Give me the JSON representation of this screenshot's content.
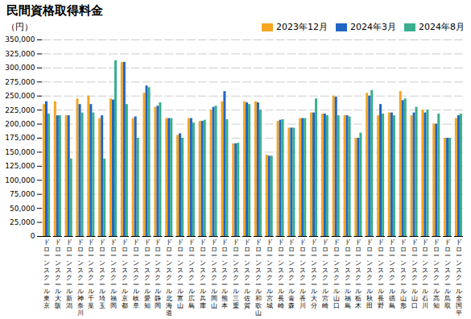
{
  "chart_data": {
    "type": "bar",
    "title": "民間資格取得料金",
    "ylabel": "（円）",
    "categories": [
      "ドローンスクール東京",
      "ドローンスクール大阪",
      "ドローンスクール新潟",
      "ドローンスクール神奈川",
      "ドローンスクール千葉",
      "ドローンスクール埼玉",
      "ドローンスクール福岡",
      "ドローンスクール京都",
      "ドローンスクール岐阜",
      "ドローンスクール愛知",
      "ドローンスクール静岡",
      "ドローンスクール北海道",
      "ドローンスクール富山",
      "ドローンスクール広島",
      "ドローンスクール兵庫",
      "ドローンスクール岡山",
      "ドローンスクール熊本",
      "ドローンスクール三重",
      "ドローンスクール佐賀",
      "ドローンスクール和歌山",
      "ドローンスクール宮城",
      "ドローンスクール長崎",
      "ドローンスクール青森",
      "ドローンスクール香川",
      "ドローンスクール大分",
      "ドローンスクール宮崎",
      "ドローンスクール山口",
      "ドローンスクール福島",
      "ドローンスクール栃木",
      "ドローンスクール秋田",
      "ドローンスクール長野",
      "ドローンスクール徳島",
      "ドローンスクール山形",
      "ドローンスクール山口",
      "ドローンスクール石川",
      "ドローンスクール高知",
      "ドローンスクール鳥取",
      "ドローンスクール全国平均"
    ],
    "series": [
      {
        "name": "2023年12月",
        "color": "#F5A623",
        "values": [
          235000,
          240000,
          215000,
          245000,
          250000,
          210000,
          245000,
          310000,
          210000,
          255000,
          230000,
          210000,
          180000,
          210000,
          205000,
          225000,
          240000,
          165000,
          240000,
          240000,
          145000,
          205000,
          193000,
          210000,
          220000,
          218000,
          250000,
          215000,
          175000,
          255000,
          215000,
          220000,
          258000,
          215000,
          225000,
          200000,
          175000,
          210000
        ]
      },
      {
        "name": "2024年3月",
        "color": "#2166C4",
        "values": [
          240000,
          215000,
          215000,
          235000,
          235000,
          215000,
          243000,
          310000,
          213000,
          268000,
          232000,
          210000,
          183000,
          210000,
          205000,
          230000,
          258000,
          165000,
          238000,
          238000,
          143000,
          207000,
          193000,
          210000,
          220000,
          218000,
          248000,
          215000,
          175000,
          250000,
          235000,
          220000,
          242000,
          220000,
          220000,
          200000,
          175000,
          215000
        ]
      },
      {
        "name": "2024年8月",
        "color": "#3AAE8E",
        "values": [
          218000,
          215000,
          138000,
          220000,
          220000,
          138000,
          313000,
          235000,
          175000,
          265000,
          238000,
          210000,
          175000,
          202000,
          207000,
          232000,
          208000,
          166000,
          235000,
          225000,
          143000,
          208000,
          193000,
          210000,
          245000,
          215000,
          215000,
          213000,
          184000,
          260000,
          218000,
          215000,
          245000,
          230000,
          225000,
          218000,
          175000,
          218000
        ]
      }
    ],
    "ylim": [
      0,
      350000
    ],
    "yticks": [
      0,
      {
        "value": 25000,
        "label": "25,000"
      },
      {
        "value": 50000,
        "label": "50,000"
      },
      {
        "value": 75000,
        "label": "75,000"
      },
      {
        "value": 100000,
        "label": "100,000"
      },
      {
        "value": 125000,
        "label": "125,000"
      },
      {
        "value": 150000,
        "label": "150,000"
      },
      {
        "value": 175000,
        "label": "175,000"
      },
      {
        "value": 200000,
        "label": "200,000"
      },
      {
        "value": 225000,
        "label": "225,000"
      },
      {
        "value": 250000,
        "label": "250,000"
      },
      {
        "value": 275000,
        "label": "275,000"
      },
      {
        "value": 300000,
        "label": "300,000"
      },
      {
        "value": 325000,
        "label": "325,000"
      },
      {
        "value": 350000,
        "label": "350,000"
      }
    ],
    "grid": true,
    "legend": "upper right"
  }
}
